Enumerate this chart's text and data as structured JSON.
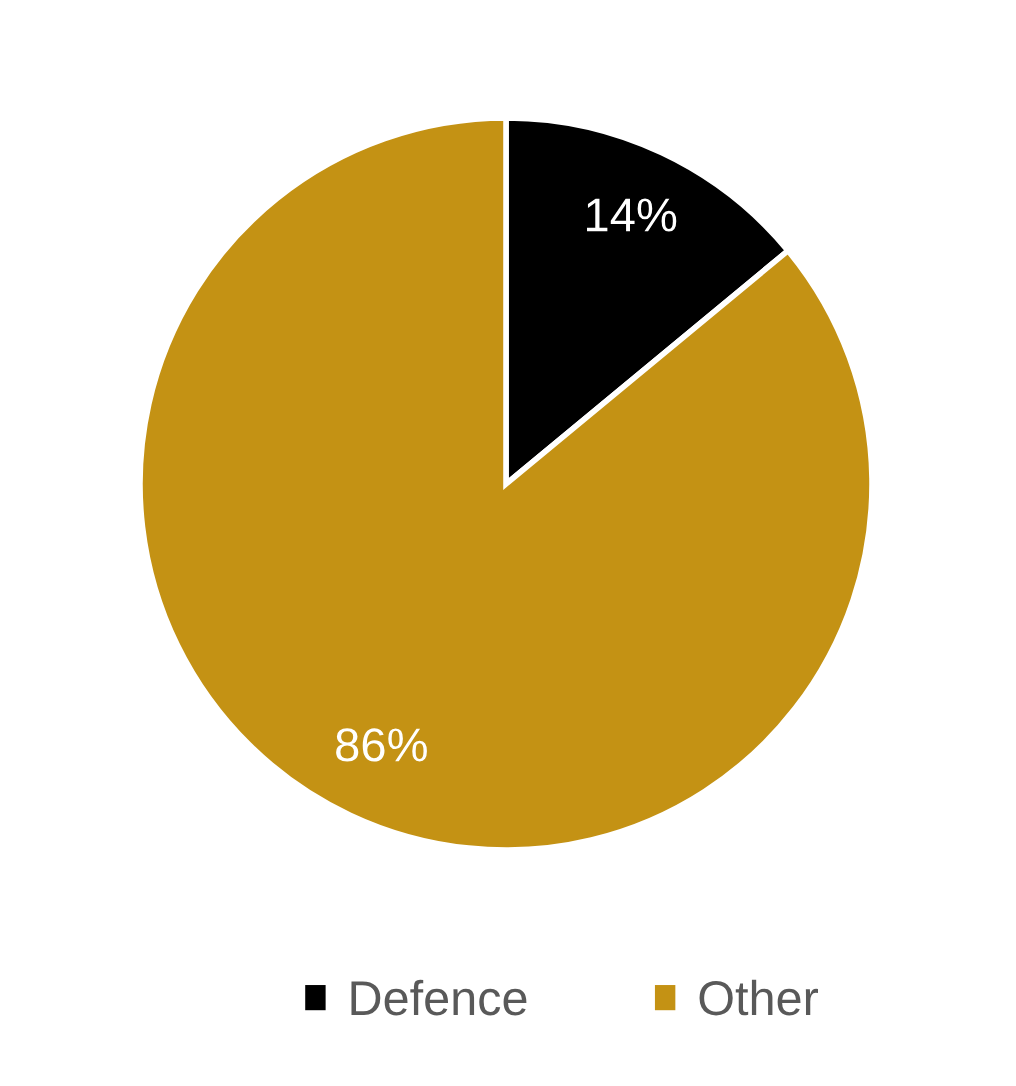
{
  "chart_data": {
    "type": "pie",
    "categories": [
      "Defence",
      "Other"
    ],
    "values": [
      14,
      86
    ],
    "colors": [
      "#000000",
      "#c49214"
    ],
    "value_labels": [
      "14%",
      "86%"
    ],
    "legend": "bottom"
  }
}
